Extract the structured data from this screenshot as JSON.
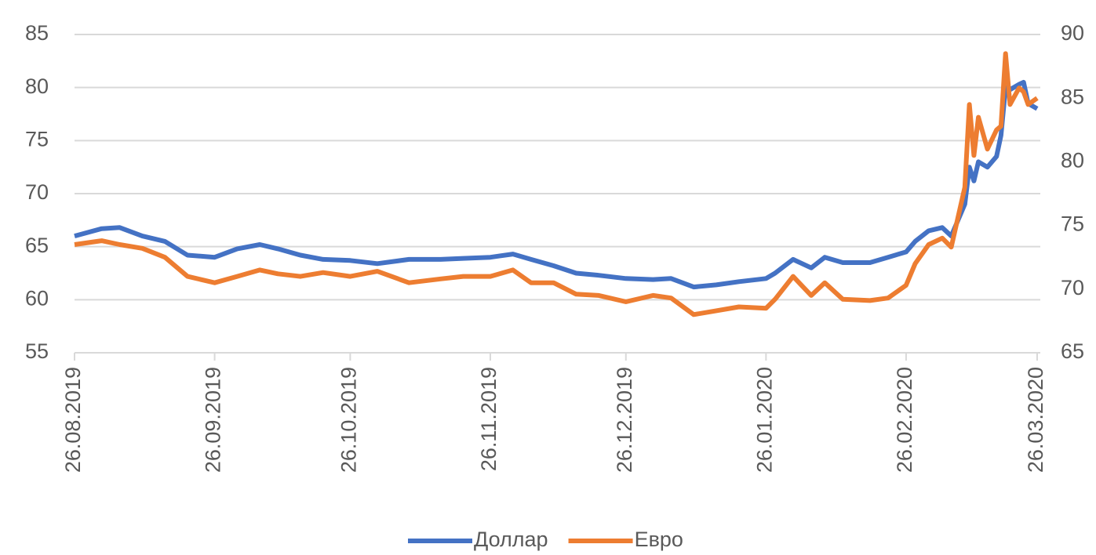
{
  "chart_data": {
    "type": "line",
    "x": [
      "26.08.2019",
      "01.09.2019",
      "05.09.2019",
      "10.09.2019",
      "15.09.2019",
      "20.09.2019",
      "26.09.2019",
      "01.10.2019",
      "06.10.2019",
      "10.10.2019",
      "15.10.2019",
      "20.10.2019",
      "26.10.2019",
      "01.11.2019",
      "08.11.2019",
      "15.11.2019",
      "20.11.2019",
      "26.11.2019",
      "01.12.2019",
      "05.12.2019",
      "10.12.2019",
      "15.12.2019",
      "20.12.2019",
      "26.12.2019",
      "01.01.2020",
      "05.01.2020",
      "10.01.2020",
      "15.01.2020",
      "20.01.2020",
      "26.01.2020",
      "28.01.2020",
      "01.02.2020",
      "05.02.2020",
      "08.02.2020",
      "12.02.2020",
      "18.02.2020",
      "22.02.2020",
      "26.02.2020",
      "28.02.2020",
      "02.03.2020",
      "05.03.2020",
      "07.03.2020",
      "10.03.2020",
      "11.03.2020",
      "12.03.2020",
      "13.03.2020",
      "15.03.2020",
      "17.03.2020",
      "18.03.2020",
      "19.03.2020",
      "20.03.2020",
      "22.03.2020",
      "23.03.2020",
      "24.03.2020",
      "26.03.2020"
    ],
    "series": [
      {
        "name": "Доллар",
        "color": "#4472c4",
        "values": [
          66,
          66.7,
          66.8,
          66,
          65.5,
          64.2,
          64,
          64.8,
          65.2,
          64.8,
          64.2,
          63.8,
          63.7,
          63.4,
          63.8,
          63.8,
          63.9,
          64,
          64.3,
          63.8,
          63.2,
          62.5,
          62.3,
          62,
          61.9,
          62,
          61.2,
          61.4,
          61.7,
          62,
          62.5,
          63.8,
          63,
          64,
          63.5,
          63.5,
          64,
          64.5,
          65.5,
          66.5,
          66.8,
          66,
          69,
          72.5,
          71.2,
          73,
          72.5,
          73.5,
          75.5,
          80,
          79.8,
          80.3,
          80.5,
          78.5,
          78
        ]
      },
      {
        "name": "Евро",
        "color": "#ed7d31",
        "axis": "y2",
        "values": [
          73.5,
          73.8,
          73.5,
          73.2,
          72.5,
          71,
          70.5,
          71,
          71.5,
          71.2,
          71,
          71.3,
          71,
          71.4,
          70.5,
          70.8,
          71,
          71,
          71.5,
          70.5,
          70.5,
          69.6,
          69.5,
          69,
          69.5,
          69.3,
          68,
          68.3,
          68.6,
          68.5,
          69.2,
          71,
          69.5,
          70.5,
          69.2,
          69.1,
          69.3,
          70.3,
          72,
          73.5,
          74,
          73.3,
          78,
          84.5,
          80.5,
          83.5,
          81,
          82.5,
          82.8,
          88.5,
          84.5,
          85.8,
          85.5,
          84.5,
          85
        ]
      }
    ],
    "xlim": [
      "26.08.2019",
      "26.03.2020"
    ],
    "xticks": [
      "26.08.2019",
      "26.09.2019",
      "26.10.2019",
      "26.11.2019",
      "26.12.2019",
      "26.01.2020",
      "26.02.2020",
      "26.03.2020"
    ],
    "ylim": [
      55,
      85
    ],
    "yticks": [
      55,
      60,
      65,
      70,
      75,
      80,
      85
    ],
    "y2lim": [
      65,
      90
    ],
    "y2ticks": [
      65,
      70,
      75,
      80,
      85,
      90
    ],
    "grid": true,
    "legend": "bottom"
  }
}
